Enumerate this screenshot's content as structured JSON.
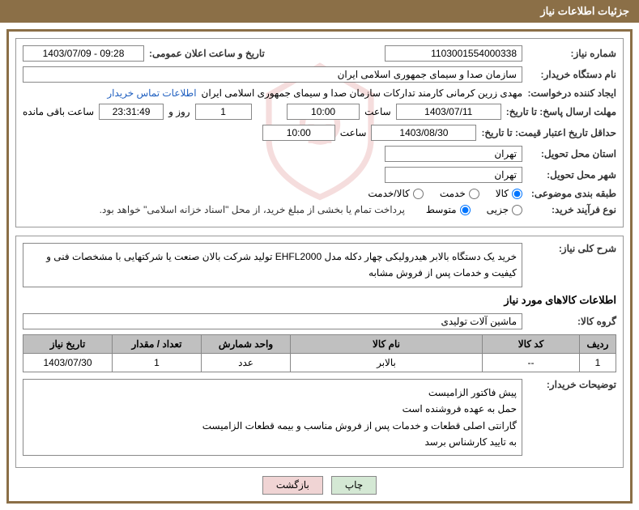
{
  "header": {
    "title": "جزئیات اطلاعات نیاز"
  },
  "fields": {
    "need_number_label": "شماره نیاز:",
    "need_number": "1103001554000338",
    "announce_date_label": "تاریخ و ساعت اعلان عمومی:",
    "announce_date": "1403/07/09 - 09:28",
    "buyer_org_label": "نام دستگاه خریدار:",
    "buyer_org": "سازمان صدا و سیمای جمهوری اسلامی ایران",
    "requester_label": "ایجاد کننده درخواست:",
    "requester": "مهدی زرین کرمانی کارمند تدارکات سازمان صدا و سیمای جمهوری اسلامی ایران",
    "contact_link": "اطلاعات تماس خریدار",
    "response_deadline_label": "مهلت ارسال پاسخ: تا تاریخ:",
    "response_date": "1403/07/11",
    "time_label": "ساعت",
    "response_time": "10:00",
    "days_and": "روز و",
    "days_value": "1",
    "countdown": "23:31:49",
    "remaining_label": "ساعت باقی مانده",
    "validity_label": "حداقل تاریخ اعتبار قیمت: تا تاریخ:",
    "validity_date": "1403/08/30",
    "validity_time": "10:00",
    "province_label": "استان محل تحویل:",
    "province": "تهران",
    "city_label": "شهر محل تحویل:",
    "city": "تهران",
    "category_label": "طبقه بندی موضوعی:",
    "cat_goods": "کالا",
    "cat_service": "خدمت",
    "cat_both": "کالا/خدمت",
    "process_label": "نوع فرآیند خرید:",
    "proc_small": "جزیی",
    "proc_medium": "متوسط",
    "payment_note": "پرداخت تمام یا بخشی از مبلغ خرید، از محل \"اسناد خزانه اسلامی\" خواهد بود.",
    "summary_label": "شرح کلی نیاز:",
    "summary": "خرید یک  دستگاه بالابر هیدرولیکی چهار دکله مدل EHFL2000 تولید شرکت بالان صنعت یا شرکتهایی با مشخصات فنی و کیفیت و خدمات پس از فروش مشابه",
    "items_title": "اطلاعات کالاهای مورد نیاز",
    "group_label": "گروه کالا:",
    "group": "ماشین آلات تولیدی",
    "buyer_notes_label": "توضیحات خریدار:",
    "buyer_notes_lines": [
      "پیش فاکتور الزامیست",
      "حمل به عهده فروشنده است",
      "گارانتی اصلی قطعات و خدمات پس از فروش مناسب و بیمه قطعات الزامیست",
      "به تایید کارشناس برسد"
    ]
  },
  "table": {
    "headers": {
      "row": "ردیف",
      "code": "کد کالا",
      "name": "نام کالا",
      "unit": "واحد شمارش",
      "qty": "تعداد / مقدار",
      "date": "تاریخ نیاز"
    },
    "rows": [
      {
        "row": "1",
        "code": "--",
        "name": "بالابر",
        "unit": "عدد",
        "qty": "1",
        "date": "1403/07/30"
      }
    ],
    "col_widths": {
      "row": "45px",
      "code": "120px",
      "name": "auto",
      "unit": "110px",
      "qty": "110px",
      "date": "110px"
    }
  },
  "buttons": {
    "print": "چاپ",
    "back": "بازگشت"
  },
  "colors": {
    "header_bg": "#8b6f47",
    "border": "#888888",
    "table_header_bg": "#c0c0c0",
    "link": "#2060c0",
    "btn_print_bg": "#d4e8d4",
    "btn_back_bg": "#f0d4d4"
  }
}
